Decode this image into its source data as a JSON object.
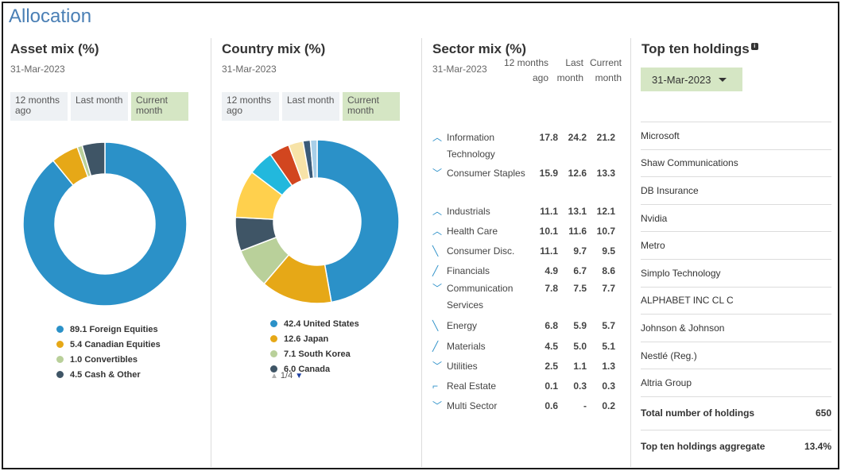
{
  "page": {
    "title": "Allocation"
  },
  "toggles": {
    "ago": "12 months ago",
    "last": "Last month",
    "current": "Current month"
  },
  "asset_mix": {
    "title": "Asset mix (%)",
    "date": "31-Mar-2023",
    "items": [
      {
        "value": 89.1,
        "label": "89.1 Foreign Equities",
        "color": "#2b91c8"
      },
      {
        "value": 5.4,
        "label": "5.4 Canadian Equities",
        "color": "#e6a817"
      },
      {
        "value": 1.0,
        "label": "1.0 Convertibles",
        "color": "#b9d09a"
      },
      {
        "value": 4.5,
        "label": "4.5 Cash & Other",
        "color": "#3f5566"
      }
    ]
  },
  "country_mix": {
    "title": "Country mix (%)",
    "date": "31-Mar-2023",
    "items": [
      {
        "value": 42.4,
        "label": "42.4 United States",
        "color": "#2b91c8"
      },
      {
        "value": 12.6,
        "label": "12.6 Japan",
        "color": "#e6a817"
      },
      {
        "value": 7.1,
        "label": "7.1 South Korea",
        "color": "#b9d09a"
      },
      {
        "value": 6.0,
        "label": "6.0 Canada",
        "color": "#3f5566"
      },
      {
        "value": 8.5,
        "label": "",
        "color": "#ffd04d"
      },
      {
        "value": 4.5,
        "label": "",
        "color": "#22b8dd"
      },
      {
        "value": 3.6,
        "label": "",
        "color": "#d2461f"
      },
      {
        "value": 2.6,
        "label": "",
        "color": "#f7e3a8"
      },
      {
        "value": 1.3,
        "label": "",
        "color": "#3a5a78"
      },
      {
        "value": 1.2,
        "label": "",
        "color": "#a9cfe8"
      }
    ],
    "pager": "1/4"
  },
  "sector_mix": {
    "title": "Sector mix (%)",
    "date": "31-Mar-2023",
    "columns": [
      "12 months ago",
      "Last month",
      "Current month"
    ],
    "rows": [
      {
        "trend": "up",
        "name": "Information Technology",
        "ago": "17.8",
        "last": "24.2",
        "current": "21.2"
      },
      {
        "trend": "down",
        "name": "Consumer Staples",
        "ago": "15.9",
        "last": "12.6",
        "current": "13.3"
      },
      {
        "trend": "up",
        "name": "Industrials",
        "ago": "11.1",
        "last": "13.1",
        "current": "12.1"
      },
      {
        "trend": "up",
        "name": "Health Care",
        "ago": "10.1",
        "last": "11.6",
        "current": "10.7"
      },
      {
        "trend": "down-diag",
        "name": "Consumer Disc.",
        "ago": "11.1",
        "last": "9.7",
        "current": "9.5"
      },
      {
        "trend": "up-diag",
        "name": "Financials",
        "ago": "4.9",
        "last": "6.7",
        "current": "8.6"
      },
      {
        "trend": "down",
        "name": "Communication Services",
        "ago": "7.8",
        "last": "7.5",
        "current": "7.7"
      },
      {
        "trend": "down-diag",
        "name": "Energy",
        "ago": "6.8",
        "last": "5.9",
        "current": "5.7"
      },
      {
        "trend": "up-diag",
        "name": "Materials",
        "ago": "4.5",
        "last": "5.0",
        "current": "5.1"
      },
      {
        "trend": "down",
        "name": "Utilities",
        "ago": "2.5",
        "last": "1.1",
        "current": "1.3"
      },
      {
        "trend": "flat-up",
        "name": "Real Estate",
        "ago": "0.1",
        "last": "0.3",
        "current": "0.3"
      },
      {
        "trend": "down",
        "name": "Multi Sector",
        "ago": "0.6",
        "last": "-",
        "current": "0.2"
      }
    ]
  },
  "holdings": {
    "title": "Top ten holdings",
    "date_selector": "31-Mar-2023",
    "items": [
      "Microsoft",
      "Shaw Communications",
      "DB Insurance",
      "Nvidia",
      "Metro",
      "Simplo Technology",
      "ALPHABET INC CL C",
      "Johnson & Johnson",
      "Nestlé (Reg.)",
      "Altria Group"
    ],
    "total_label": "Total number of holdings",
    "total_value": "650",
    "aggregate_label": "Top ten holdings aggregate",
    "aggregate_value": "13.4%"
  }
}
